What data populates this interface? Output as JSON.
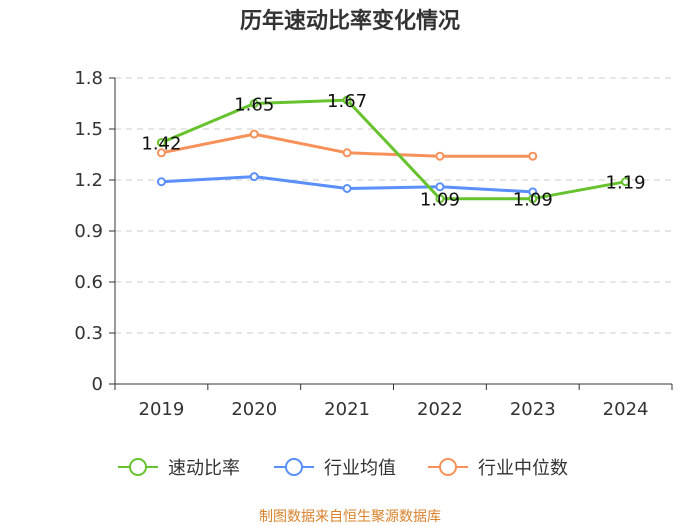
{
  "chart_data": {
    "type": "line",
    "title": "历年速动比率变化情况",
    "categories": [
      "2019",
      "2020",
      "2021",
      "2022",
      "2023",
      "2024"
    ],
    "yticks": [
      "0",
      "0.3",
      "0.6",
      "0.9",
      "1.2",
      "1.5",
      "1.8"
    ],
    "ylim": [
      0,
      1.8
    ],
    "grid": true,
    "legend_position": "bottom",
    "series": [
      {
        "name": "速动比率",
        "color": "#66c32e",
        "values": [
          1.42,
          1.65,
          1.67,
          1.09,
          1.09,
          1.19
        ],
        "labels": [
          "1.42",
          "1.65",
          "1.67",
          "1.09",
          "1.09",
          "1.19"
        ]
      },
      {
        "name": "行业均值",
        "color": "#5b8ff9",
        "values": [
          1.19,
          1.22,
          1.15,
          1.16,
          1.13,
          null
        ]
      },
      {
        "name": "行业中位数",
        "color": "#f7915a",
        "values": [
          1.36,
          1.47,
          1.36,
          1.34,
          1.34,
          null
        ]
      }
    ]
  },
  "source": "制图数据来自恒生聚源数据库"
}
